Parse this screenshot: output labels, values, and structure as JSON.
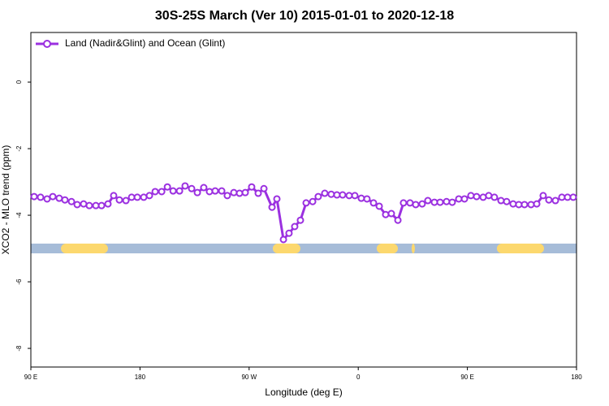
{
  "chart_data": {
    "type": "line",
    "title": "30S-25S March (Ver 10)   2015-01-01 to 2020-12-18",
    "x_label": "Longitude (deg E)",
    "y_label": "XCO2 - MLO trend (ppm)",
    "xlim": [
      90,
      540
    ],
    "ylim": [
      -8.56,
      1.49
    ],
    "xticks": [
      {
        "value": 90,
        "label": "90 E"
      },
      180,
      {
        "value": 270,
        "label": "90 W"
      },
      {
        "value": 360,
        "label": "0"
      },
      {
        "value": 450,
        "label": "90 E"
      },
      {
        "value": 540,
        "label": "180"
      }
    ],
    "yticks": [
      0,
      -2,
      -4,
      -6,
      -8
    ],
    "legend_position": "top-left",
    "series": [
      {
        "name": "Land (Nadir&Glint) and Ocean (Glint)",
        "color": "#9b30e0",
        "x": [
          92.7,
          98,
          103.4,
          108.1,
          113.4,
          118.1,
          123.5,
          128.2,
          133.5,
          138.2,
          143.6,
          148.3,
          153.6,
          158.3,
          163,
          168.4,
          173.1,
          177.8,
          183.1,
          187.8,
          192.5,
          197.9,
          202.6,
          207.3,
          212.6,
          217.2,
          222.6,
          227.3,
          232.6,
          237.3,
          242,
          247.4,
          252,
          257.4,
          262.1,
          266.8,
          272.1,
          277.5,
          282.2,
          288.9,
          292.9,
          298.3,
          302.9,
          307.6,
          312.3,
          317,
          322.4,
          327,
          332.4,
          337.7,
          342.4,
          347.1,
          352.5,
          357.2,
          362.5,
          367.2,
          372.6,
          377.3,
          382.6,
          387.3,
          392.7,
          397.3,
          402.7,
          407.4,
          412.7,
          417.4,
          422.8,
          427.5,
          432.8,
          437.5,
          442.9,
          447.6,
          452.9,
          457.6,
          463,
          467.6,
          472.3,
          477.7,
          482.4,
          487.7,
          492.4,
          497.1,
          502.5,
          507.2,
          512.5,
          517.2,
          522.6,
          527.9,
          532.6,
          537.3
        ],
        "values": [
          -3.44,
          -3.46,
          -3.51,
          -3.44,
          -3.49,
          -3.54,
          -3.59,
          -3.68,
          -3.66,
          -3.71,
          -3.71,
          -3.71,
          -3.66,
          -3.41,
          -3.54,
          -3.56,
          -3.46,
          -3.46,
          -3.46,
          -3.41,
          -3.29,
          -3.29,
          -3.15,
          -3.27,
          -3.27,
          -3.12,
          -3.2,
          -3.32,
          -3.17,
          -3.29,
          -3.27,
          -3.27,
          -3.41,
          -3.32,
          -3.34,
          -3.32,
          -3.15,
          -3.34,
          -3.2,
          -3.76,
          -3.51,
          -4.73,
          -4.54,
          -4.34,
          -4.15,
          -3.63,
          -3.59,
          -3.44,
          -3.34,
          -3.37,
          -3.39,
          -3.39,
          -3.41,
          -3.41,
          -3.49,
          -3.51,
          -3.63,
          -3.73,
          -3.98,
          -3.95,
          -4.15,
          -3.63,
          -3.63,
          -3.68,
          -3.66,
          -3.56,
          -3.61,
          -3.61,
          -3.59,
          -3.61,
          -3.51,
          -3.51,
          -3.41,
          -3.44,
          -3.46,
          -3.41,
          -3.46,
          -3.56,
          -3.59,
          -3.66,
          -3.68,
          -3.68,
          -3.68,
          -3.66,
          -3.41,
          -3.54,
          -3.56,
          -3.46,
          -3.46,
          -3.46
        ]
      }
    ],
    "surface_band": {
      "value": -5,
      "ocean_color": "#a6bcd8",
      "land_color": "#fcd86e",
      "land_ranges": [
        [
          114.8,
          153.6
        ],
        [
          289.5,
          312.3
        ],
        [
          375.2,
          392.7
        ],
        [
          404,
          406.7
        ],
        [
          474.3,
          513.2
        ]
      ]
    }
  }
}
